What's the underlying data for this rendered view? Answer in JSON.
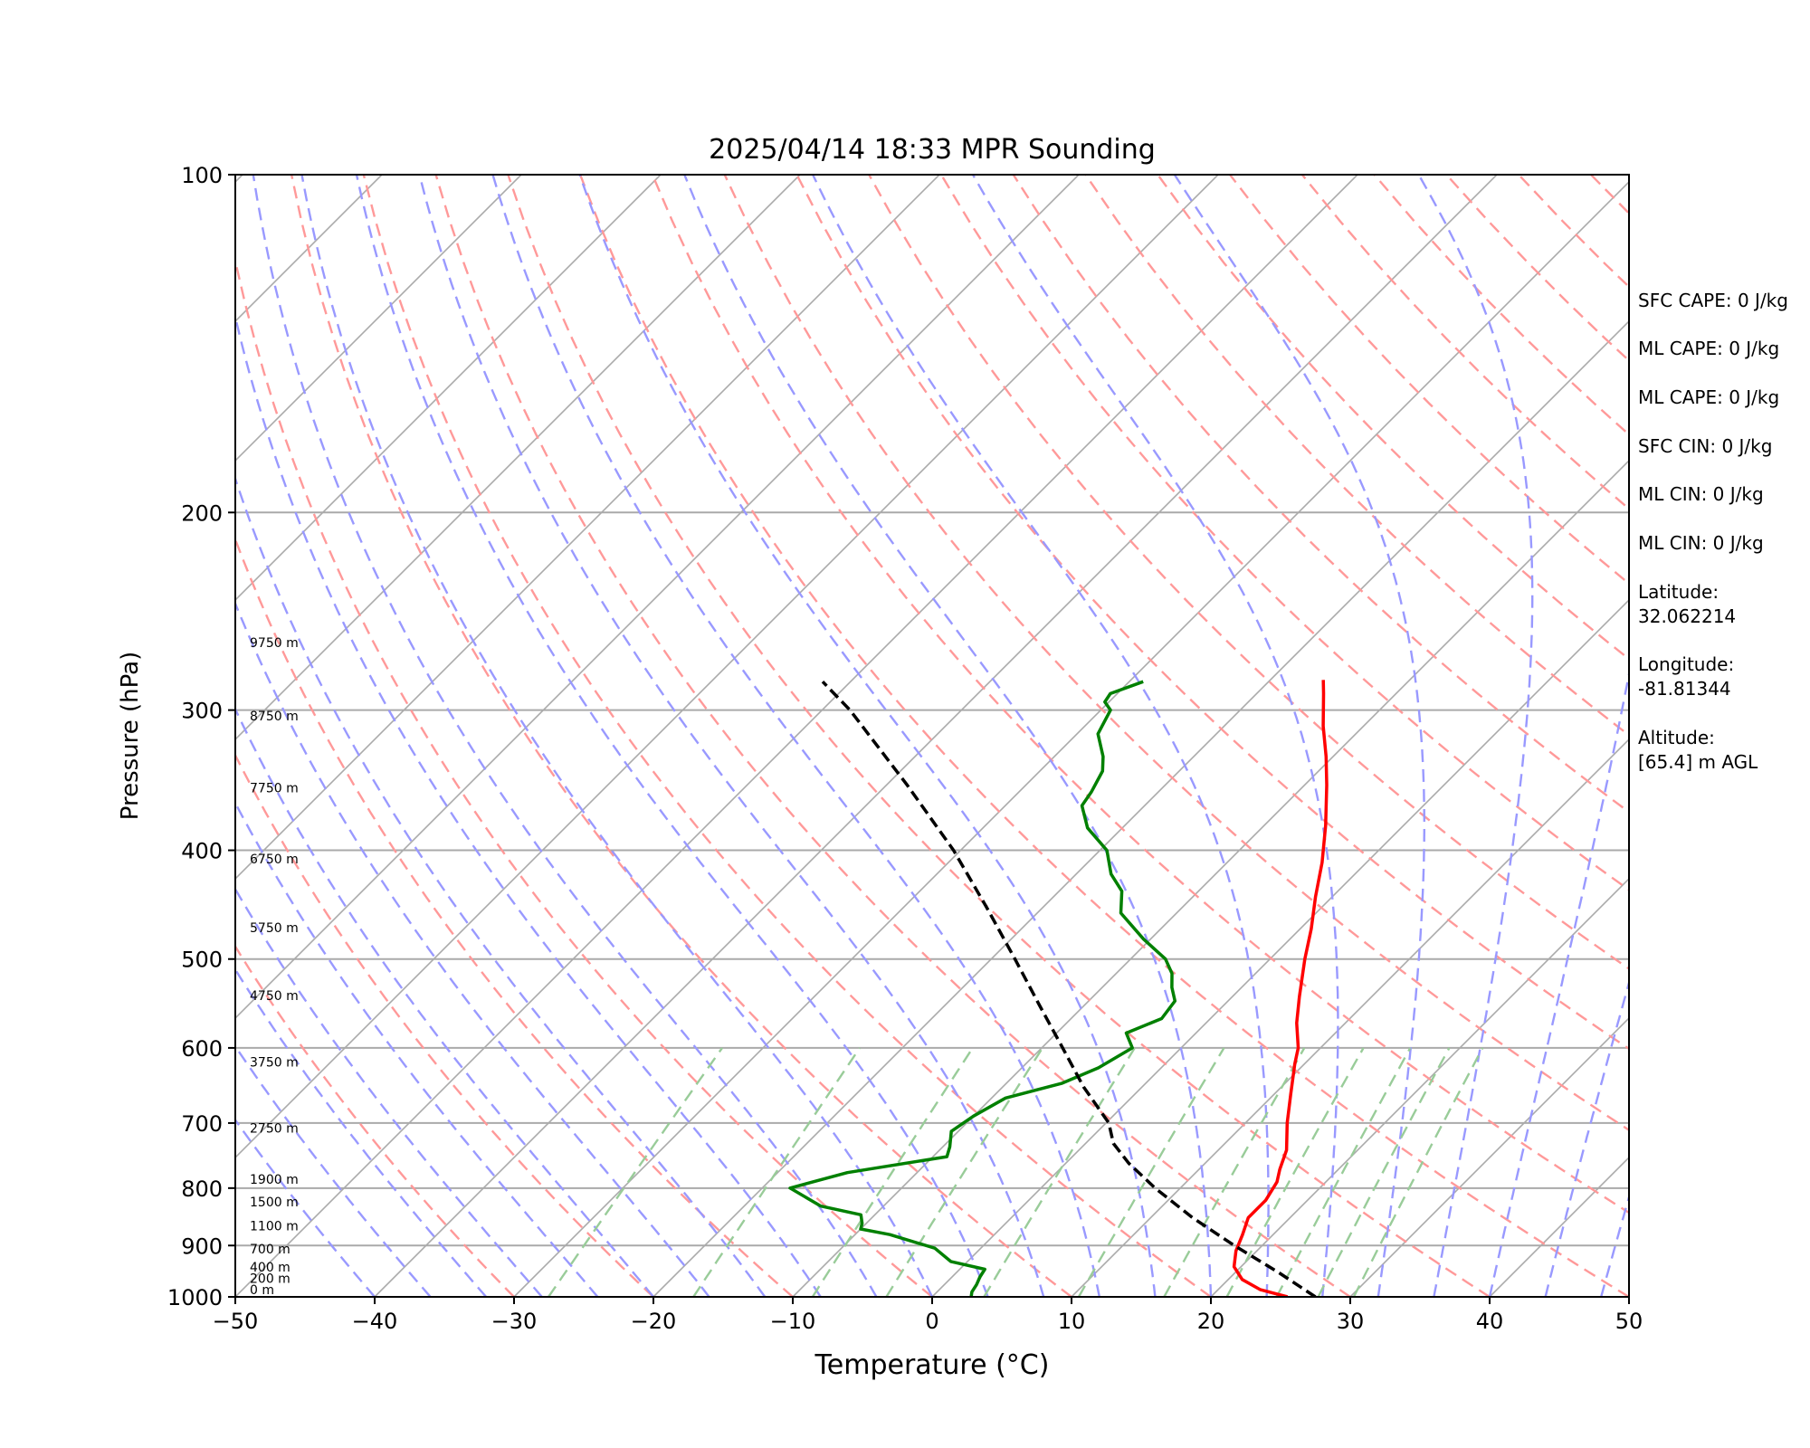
{
  "chart_data": {
    "type": "line",
    "title": "2025/04/14 18:33 MPR Sounding",
    "xlabel": "Temperature (°C)",
    "ylabel": "Pressure (hPa)",
    "xlim": [
      -50,
      50
    ],
    "ylim": [
      1000,
      100
    ],
    "y_scale": "log",
    "x_ticks": [
      "−50",
      "−40",
      "−30",
      "−20",
      "−10",
      "0",
      "10",
      "20",
      "30",
      "40",
      "50"
    ],
    "y_ticks": [
      {
        "p": 100,
        "label": "100"
      },
      {
        "p": 200,
        "label": "200"
      },
      {
        "p": 300,
        "label": "300"
      },
      {
        "p": 400,
        "label": "400"
      },
      {
        "p": 500,
        "label": "500"
      },
      {
        "p": 600,
        "label": "600"
      },
      {
        "p": 700,
        "label": "700"
      },
      {
        "p": 800,
        "label": "800"
      },
      {
        "p": 900,
        "label": "900"
      },
      {
        "p": 1000,
        "label": "1000"
      }
    ],
    "height_labels": [
      {
        "p": 1000,
        "label": "0 m"
      },
      {
        "p": 977,
        "label": "200 m"
      },
      {
        "p": 955,
        "label": "400 m"
      },
      {
        "p": 920,
        "label": "700 m"
      },
      {
        "p": 877,
        "label": "1100 m"
      },
      {
        "p": 835,
        "label": "1500 m"
      },
      {
        "p": 797,
        "label": "1900 m"
      },
      {
        "p": 718,
        "label": "2750 m"
      },
      {
        "p": 627,
        "label": "3750 m"
      },
      {
        "p": 547,
        "label": "4750 m"
      },
      {
        "p": 476,
        "label": "5750 m"
      },
      {
        "p": 413,
        "label": "6750 m"
      },
      {
        "p": 357,
        "label": "7750 m"
      },
      {
        "p": 308,
        "label": "8750 m"
      },
      {
        "p": 265,
        "label": "9750 m"
      }
    ],
    "series": [
      {
        "name": "Temperature",
        "color": "#ff0000",
        "style": "solid",
        "points": [
          [
            1000,
            25.5
          ],
          [
            985,
            23.0
          ],
          [
            965,
            21.0
          ],
          [
            940,
            19.5
          ],
          [
            910,
            18.5
          ],
          [
            880,
            17.8
          ],
          [
            850,
            17.0
          ],
          [
            820,
            17.0
          ],
          [
            790,
            16.5
          ],
          [
            770,
            15.8
          ],
          [
            740,
            14.9
          ],
          [
            700,
            13.0
          ],
          [
            660,
            11.2
          ],
          [
            620,
            9.3
          ],
          [
            600,
            8.4
          ],
          [
            570,
            6.5
          ],
          [
            540,
            4.8
          ],
          [
            500,
            2.5
          ],
          [
            470,
            0.8
          ],
          [
            440,
            -1.2
          ],
          [
            410,
            -3.2
          ],
          [
            380,
            -5.6
          ],
          [
            350,
            -8.4
          ],
          [
            330,
            -10.5
          ],
          [
            310,
            -12.9
          ],
          [
            290,
            -15.2
          ],
          [
            282,
            -16.2
          ]
        ]
      },
      {
        "name": "Dewpoint",
        "color": "#008000",
        "style": "solid",
        "points": [
          [
            1000,
            2.8
          ],
          [
            990,
            2.5
          ],
          [
            975,
            2.3
          ],
          [
            960,
            2.0
          ],
          [
            945,
            1.8
          ],
          [
            930,
            -1.2
          ],
          [
            905,
            -3.3
          ],
          [
            880,
            -7.5
          ],
          [
            870,
            -10.0
          ],
          [
            860,
            -10.3
          ],
          [
            845,
            -11.0
          ],
          [
            830,
            -14.5
          ],
          [
            800,
            -18.0
          ],
          [
            775,
            -15.0
          ],
          [
            750,
            -9.0
          ],
          [
            735,
            -9.5
          ],
          [
            712,
            -10.5
          ],
          [
            690,
            -10.0
          ],
          [
            665,
            -9.0
          ],
          [
            645,
            -6.0
          ],
          [
            625,
            -4.5
          ],
          [
            600,
            -3.5
          ],
          [
            582,
            -5.0
          ],
          [
            565,
            -3.5
          ],
          [
            545,
            -3.8
          ],
          [
            530,
            -5.0
          ],
          [
            515,
            -6.0
          ],
          [
            500,
            -7.5
          ],
          [
            480,
            -10.5
          ],
          [
            455,
            -14.0
          ],
          [
            435,
            -15.5
          ],
          [
            420,
            -17.5
          ],
          [
            400,
            -19.5
          ],
          [
            382,
            -22.5
          ],
          [
            365,
            -24.5
          ],
          [
            355,
            -24.8
          ],
          [
            340,
            -25.5
          ],
          [
            330,
            -26.5
          ],
          [
            315,
            -28.5
          ],
          [
            300,
            -29.3
          ],
          [
            295,
            -30.3
          ],
          [
            290,
            -30.5
          ],
          [
            283,
            -29.0
          ]
        ]
      },
      {
        "name": "Parcel profile",
        "color": "#000000",
        "style": "dashed",
        "points": [
          [
            1000,
            27.5
          ],
          [
            950,
            23.0
          ],
          [
            900,
            18.0
          ],
          [
            850,
            13.0
          ],
          [
            800,
            8.2
          ],
          [
            760,
            4.5
          ],
          [
            730,
            2.0
          ],
          [
            700,
            0.2
          ],
          [
            650,
            -4.2
          ],
          [
            600,
            -8.5
          ],
          [
            550,
            -13.2
          ],
          [
            500,
            -18.3
          ],
          [
            450,
            -24.0
          ],
          [
            400,
            -30.5
          ],
          [
            350,
            -38.5
          ],
          [
            300,
            -48.0
          ],
          [
            283,
            -52.0
          ]
        ]
      }
    ],
    "annotations": [
      "SFC CAPE: 0 J/kg",
      "ML CAPE: 0 J/kg",
      "ML CAPE: 0 J/kg",
      "SFC CIN: 0 J/kg",
      "ML CIN: 0 J/kg",
      "ML CIN: 0 J/kg",
      "Latitude:",
      "32.062214",
      "Longitude:",
      "-81.81344",
      "Altitude:",
      "[65.4] m AGL"
    ],
    "grid": true,
    "colors": {
      "dry_adiabats": "#ff9999",
      "moist_adiabats": "#9999ff",
      "mixing_ratio": "#99cc99",
      "isotherms": "#aaaaaa"
    }
  }
}
